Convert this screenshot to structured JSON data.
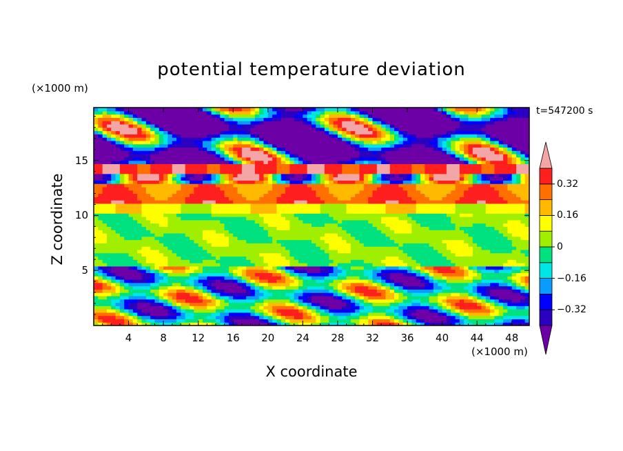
{
  "chart_data": {
    "type": "heatmap",
    "title": "potential temperature deviation",
    "xlabel": "X coordinate",
    "ylabel": "Z coordinate",
    "x_unit": "(×1000 m)",
    "y_unit": "(×1000 m)",
    "time_label": "t=547200 s",
    "xlim": [
      0,
      50
    ],
    "ylim": [
      0,
      19.8
    ],
    "x_ticks": [
      4,
      8,
      12,
      16,
      20,
      24,
      28,
      32,
      36,
      40,
      44,
      48
    ],
    "y_ticks": [
      5,
      10,
      15
    ],
    "colorbar": {
      "levels": [
        -0.4,
        -0.32,
        -0.24,
        -0.16,
        -0.08,
        0,
        0.08,
        0.16,
        0.24,
        0.32,
        0.4
      ],
      "labels": [
        "0.32",
        "0.16",
        "0",
        "−0.16",
        "−0.32"
      ],
      "label_values": [
        0.32,
        0.16,
        0,
        -0.16,
        -0.32
      ],
      "colors": [
        "#6c00a6",
        "#2c00c0",
        "#0000ff",
        "#0a9bff",
        "#00e5e5",
        "#00e27f",
        "#a0ee00",
        "#ffff00",
        "#ffba00",
        "#ff7000",
        "#ff1f1f",
        "#f4a5a5"
      ]
    }
  }
}
